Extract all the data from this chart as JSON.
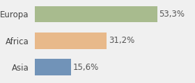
{
  "categories": [
    "Europa",
    "Africa",
    "Asia"
  ],
  "values": [
    53.3,
    31.2,
    15.6
  ],
  "labels": [
    "53,3%",
    "31,2%",
    "15,6%"
  ],
  "bar_colors": [
    "#a8bb8e",
    "#e8b98a",
    "#7193b8"
  ],
  "background_color": "#f0f0f0",
  "xlim": [
    0,
    68
  ],
  "bar_height": 0.62,
  "label_fontsize": 8.5,
  "category_fontsize": 8.5
}
